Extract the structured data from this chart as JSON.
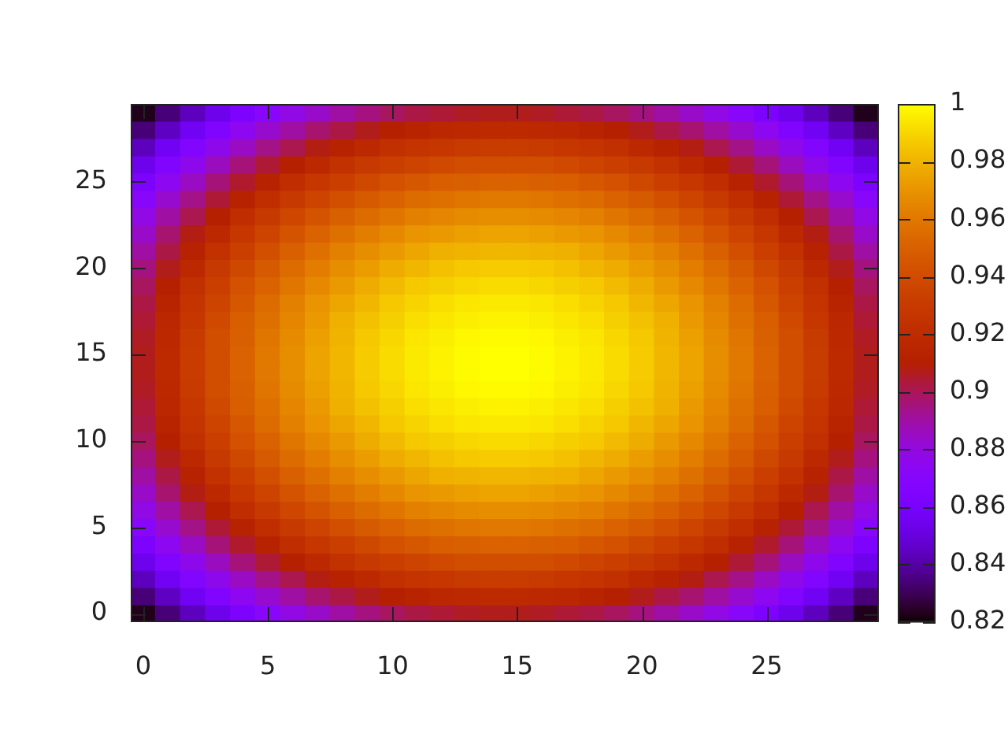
{
  "chart_data": {
    "type": "heatmap",
    "categories": [
      "0",
      null,
      null,
      null,
      null,
      "5",
      null,
      null,
      null,
      null,
      "10",
      null,
      null,
      null,
      null,
      "15",
      null,
      null,
      null,
      null,
      "20",
      null,
      null,
      null,
      null,
      "25",
      null,
      null,
      null,
      null
    ],
    "y_categories": [
      null,
      null,
      null,
      null,
      "25",
      null,
      null,
      null,
      null,
      "20",
      null,
      null,
      null,
      null,
      "15",
      null,
      null,
      null,
      null,
      "10",
      null,
      null,
      null,
      null,
      "5",
      null,
      null,
      null,
      null,
      "0"
    ],
    "cells": [
      [
        0.823,
        0.834,
        0.844,
        0.854,
        0.863,
        0.871,
        0.878,
        0.884,
        0.89,
        0.895,
        0.899,
        0.902,
        0.904,
        0.906,
        0.907,
        0.907,
        0.906,
        0.904,
        0.902,
        0.899,
        0.895,
        0.89,
        0.884,
        0.878,
        0.871,
        0.863,
        0.854,
        0.844,
        0.834,
        0.823
      ],
      [
        0.834,
        0.845,
        0.856,
        0.866,
        0.875,
        0.883,
        0.89,
        0.897,
        0.902,
        0.907,
        0.911,
        0.914,
        0.917,
        0.918,
        0.919,
        0.919,
        0.918,
        0.917,
        0.914,
        0.911,
        0.907,
        0.902,
        0.897,
        0.89,
        0.883,
        0.875,
        0.866,
        0.856,
        0.845,
        0.834
      ],
      [
        0.844,
        0.856,
        0.867,
        0.876,
        0.885,
        0.894,
        0.901,
        0.908,
        0.913,
        0.918,
        0.923,
        0.926,
        0.928,
        0.93,
        0.931,
        0.931,
        0.93,
        0.928,
        0.926,
        0.923,
        0.918,
        0.913,
        0.908,
        0.901,
        0.894,
        0.885,
        0.876,
        0.867,
        0.856,
        0.844
      ],
      [
        0.854,
        0.866,
        0.876,
        0.886,
        0.896,
        0.904,
        0.911,
        0.918,
        0.924,
        0.929,
        0.933,
        0.936,
        0.939,
        0.941,
        0.941,
        0.941,
        0.941,
        0.939,
        0.936,
        0.933,
        0.929,
        0.924,
        0.918,
        0.911,
        0.904,
        0.896,
        0.886,
        0.876,
        0.866,
        0.854
      ],
      [
        0.863,
        0.875,
        0.885,
        0.896,
        0.905,
        0.913,
        0.921,
        0.928,
        0.933,
        0.938,
        0.943,
        0.946,
        0.949,
        0.95,
        0.951,
        0.951,
        0.95,
        0.949,
        0.946,
        0.943,
        0.938,
        0.933,
        0.928,
        0.921,
        0.913,
        0.905,
        0.896,
        0.885,
        0.875,
        0.863
      ],
      [
        0.871,
        0.883,
        0.894,
        0.904,
        0.913,
        0.922,
        0.929,
        0.936,
        0.942,
        0.947,
        0.951,
        0.955,
        0.957,
        0.959,
        0.96,
        0.96,
        0.959,
        0.957,
        0.955,
        0.951,
        0.947,
        0.942,
        0.936,
        0.929,
        0.922,
        0.913,
        0.904,
        0.894,
        0.883,
        0.871
      ],
      [
        0.878,
        0.89,
        0.901,
        0.911,
        0.921,
        0.929,
        0.937,
        0.944,
        0.95,
        0.955,
        0.959,
        0.963,
        0.965,
        0.967,
        0.968,
        0.968,
        0.967,
        0.965,
        0.963,
        0.959,
        0.955,
        0.95,
        0.944,
        0.937,
        0.929,
        0.921,
        0.911,
        0.901,
        0.89,
        0.878
      ],
      [
        0.884,
        0.897,
        0.908,
        0.918,
        0.928,
        0.936,
        0.944,
        0.951,
        0.957,
        0.962,
        0.966,
        0.97,
        0.972,
        0.974,
        0.975,
        0.975,
        0.974,
        0.972,
        0.97,
        0.966,
        0.962,
        0.957,
        0.951,
        0.944,
        0.936,
        0.928,
        0.918,
        0.908,
        0.897,
        0.884
      ],
      [
        0.89,
        0.902,
        0.913,
        0.924,
        0.933,
        0.942,
        0.95,
        0.957,
        0.963,
        0.968,
        0.972,
        0.976,
        0.979,
        0.98,
        0.981,
        0.981,
        0.98,
        0.979,
        0.976,
        0.972,
        0.968,
        0.963,
        0.957,
        0.95,
        0.942,
        0.933,
        0.924,
        0.913,
        0.902,
        0.89
      ],
      [
        0.895,
        0.907,
        0.918,
        0.929,
        0.938,
        0.947,
        0.955,
        0.962,
        0.968,
        0.973,
        0.978,
        0.981,
        0.984,
        0.986,
        0.987,
        0.987,
        0.986,
        0.984,
        0.981,
        0.978,
        0.973,
        0.968,
        0.962,
        0.955,
        0.947,
        0.938,
        0.929,
        0.918,
        0.907,
        0.895
      ],
      [
        0.899,
        0.911,
        0.923,
        0.933,
        0.943,
        0.951,
        0.959,
        0.966,
        0.972,
        0.978,
        0.982,
        0.986,
        0.988,
        0.99,
        0.991,
        0.991,
        0.99,
        0.988,
        0.986,
        0.982,
        0.978,
        0.972,
        0.966,
        0.959,
        0.951,
        0.943,
        0.933,
        0.923,
        0.911,
        0.899
      ],
      [
        0.902,
        0.914,
        0.926,
        0.936,
        0.946,
        0.955,
        0.963,
        0.97,
        0.976,
        0.981,
        0.986,
        0.989,
        0.992,
        0.994,
        0.995,
        0.995,
        0.994,
        0.992,
        0.989,
        0.986,
        0.981,
        0.976,
        0.97,
        0.963,
        0.955,
        0.946,
        0.936,
        0.926,
        0.914,
        0.902
      ],
      [
        0.904,
        0.917,
        0.928,
        0.939,
        0.949,
        0.957,
        0.965,
        0.972,
        0.979,
        0.984,
        0.988,
        0.992,
        0.994,
        0.996,
        0.997,
        0.997,
        0.996,
        0.994,
        0.992,
        0.988,
        0.984,
        0.979,
        0.972,
        0.965,
        0.957,
        0.949,
        0.939,
        0.928,
        0.917,
        0.904
      ],
      [
        0.906,
        0.918,
        0.93,
        0.941,
        0.95,
        0.959,
        0.967,
        0.974,
        0.98,
        0.986,
        0.99,
        0.994,
        0.996,
        0.998,
        0.999,
        0.999,
        0.998,
        0.996,
        0.994,
        0.99,
        0.986,
        0.98,
        0.974,
        0.967,
        0.959,
        0.95,
        0.941,
        0.93,
        0.918,
        0.906
      ],
      [
        0.907,
        0.919,
        0.931,
        0.941,
        0.951,
        0.96,
        0.968,
        0.975,
        0.981,
        0.987,
        0.991,
        0.995,
        0.997,
        0.999,
        1,
        1,
        0.999,
        0.997,
        0.995,
        0.991,
        0.987,
        0.981,
        0.975,
        0.968,
        0.96,
        0.951,
        0.941,
        0.931,
        0.919,
        0.907
      ],
      [
        0.907,
        0.919,
        0.931,
        0.941,
        0.951,
        0.96,
        0.968,
        0.975,
        0.981,
        0.987,
        0.991,
        0.995,
        0.997,
        0.999,
        1,
        1,
        0.999,
        0.997,
        0.995,
        0.991,
        0.987,
        0.981,
        0.975,
        0.968,
        0.96,
        0.951,
        0.941,
        0.931,
        0.919,
        0.907
      ],
      [
        0.906,
        0.918,
        0.93,
        0.941,
        0.95,
        0.959,
        0.967,
        0.974,
        0.98,
        0.986,
        0.99,
        0.994,
        0.996,
        0.998,
        0.999,
        0.999,
        0.998,
        0.996,
        0.994,
        0.99,
        0.986,
        0.98,
        0.974,
        0.967,
        0.959,
        0.95,
        0.941,
        0.93,
        0.918,
        0.906
      ],
      [
        0.904,
        0.917,
        0.928,
        0.939,
        0.949,
        0.957,
        0.965,
        0.972,
        0.979,
        0.984,
        0.988,
        0.992,
        0.994,
        0.996,
        0.997,
        0.997,
        0.996,
        0.994,
        0.992,
        0.988,
        0.984,
        0.979,
        0.972,
        0.965,
        0.957,
        0.949,
        0.939,
        0.928,
        0.917,
        0.904
      ],
      [
        0.902,
        0.914,
        0.926,
        0.936,
        0.946,
        0.955,
        0.963,
        0.97,
        0.976,
        0.981,
        0.986,
        0.989,
        0.992,
        0.994,
        0.995,
        0.995,
        0.994,
        0.992,
        0.989,
        0.986,
        0.981,
        0.976,
        0.97,
        0.963,
        0.955,
        0.946,
        0.936,
        0.926,
        0.914,
        0.902
      ],
      [
        0.899,
        0.911,
        0.923,
        0.933,
        0.943,
        0.951,
        0.959,
        0.966,
        0.972,
        0.978,
        0.982,
        0.986,
        0.988,
        0.99,
        0.991,
        0.991,
        0.99,
        0.988,
        0.986,
        0.982,
        0.978,
        0.972,
        0.966,
        0.959,
        0.951,
        0.943,
        0.933,
        0.923,
        0.911,
        0.899
      ],
      [
        0.895,
        0.907,
        0.918,
        0.929,
        0.938,
        0.947,
        0.955,
        0.962,
        0.968,
        0.973,
        0.978,
        0.981,
        0.984,
        0.986,
        0.987,
        0.987,
        0.986,
        0.984,
        0.981,
        0.978,
        0.973,
        0.968,
        0.962,
        0.955,
        0.947,
        0.938,
        0.929,
        0.918,
        0.907,
        0.895
      ],
      [
        0.89,
        0.902,
        0.913,
        0.924,
        0.933,
        0.942,
        0.95,
        0.957,
        0.963,
        0.968,
        0.972,
        0.976,
        0.979,
        0.98,
        0.981,
        0.981,
        0.98,
        0.979,
        0.976,
        0.972,
        0.968,
        0.963,
        0.957,
        0.95,
        0.942,
        0.933,
        0.924,
        0.913,
        0.902,
        0.89
      ],
      [
        0.884,
        0.897,
        0.908,
        0.918,
        0.928,
        0.936,
        0.944,
        0.951,
        0.957,
        0.962,
        0.966,
        0.97,
        0.972,
        0.974,
        0.975,
        0.975,
        0.974,
        0.972,
        0.97,
        0.966,
        0.962,
        0.957,
        0.951,
        0.944,
        0.936,
        0.928,
        0.918,
        0.908,
        0.897,
        0.884
      ],
      [
        0.878,
        0.89,
        0.901,
        0.911,
        0.921,
        0.929,
        0.937,
        0.944,
        0.95,
        0.955,
        0.959,
        0.963,
        0.965,
        0.967,
        0.968,
        0.968,
        0.967,
        0.965,
        0.963,
        0.959,
        0.955,
        0.95,
        0.944,
        0.937,
        0.929,
        0.921,
        0.911,
        0.901,
        0.89,
        0.878
      ],
      [
        0.871,
        0.883,
        0.894,
        0.904,
        0.913,
        0.922,
        0.929,
        0.936,
        0.942,
        0.947,
        0.951,
        0.955,
        0.957,
        0.959,
        0.96,
        0.96,
        0.959,
        0.957,
        0.955,
        0.951,
        0.947,
        0.942,
        0.936,
        0.929,
        0.922,
        0.913,
        0.904,
        0.894,
        0.883,
        0.871
      ],
      [
        0.863,
        0.875,
        0.885,
        0.896,
        0.905,
        0.913,
        0.921,
        0.928,
        0.933,
        0.938,
        0.943,
        0.946,
        0.949,
        0.95,
        0.951,
        0.951,
        0.95,
        0.949,
        0.946,
        0.943,
        0.938,
        0.933,
        0.928,
        0.921,
        0.913,
        0.905,
        0.896,
        0.885,
        0.875,
        0.863
      ],
      [
        0.854,
        0.866,
        0.876,
        0.886,
        0.896,
        0.904,
        0.911,
        0.918,
        0.924,
        0.929,
        0.933,
        0.936,
        0.939,
        0.941,
        0.941,
        0.941,
        0.941,
        0.939,
        0.936,
        0.933,
        0.929,
        0.924,
        0.918,
        0.911,
        0.904,
        0.896,
        0.886,
        0.876,
        0.866,
        0.854
      ],
      [
        0.844,
        0.856,
        0.867,
        0.876,
        0.885,
        0.894,
        0.901,
        0.908,
        0.913,
        0.918,
        0.923,
        0.926,
        0.928,
        0.93,
        0.931,
        0.931,
        0.93,
        0.928,
        0.926,
        0.923,
        0.918,
        0.913,
        0.908,
        0.901,
        0.894,
        0.885,
        0.876,
        0.867,
        0.856,
        0.844
      ],
      [
        0.834,
        0.845,
        0.856,
        0.866,
        0.875,
        0.883,
        0.89,
        0.897,
        0.902,
        0.907,
        0.911,
        0.914,
        0.917,
        0.918,
        0.919,
        0.919,
        0.918,
        0.917,
        0.914,
        0.911,
        0.907,
        0.902,
        0.897,
        0.89,
        0.883,
        0.875,
        0.866,
        0.856,
        0.845,
        0.834
      ],
      [
        0.823,
        0.834,
        0.844,
        0.854,
        0.863,
        0.871,
        0.878,
        0.884,
        0.89,
        0.895,
        0.899,
        0.902,
        0.904,
        0.906,
        0.907,
        0.907,
        0.906,
        0.904,
        0.902,
        0.899,
        0.895,
        0.89,
        0.884,
        0.878,
        0.871,
        0.863,
        0.854,
        0.844,
        0.834,
        0.823
      ]
    ],
    "clim": [
      0.82,
      1
    ],
    "cticks": [
      0.82,
      0.84,
      0.86,
      0.88,
      0.9,
      0.92,
      0.94,
      0.96,
      0.98,
      1
    ]
  }
}
